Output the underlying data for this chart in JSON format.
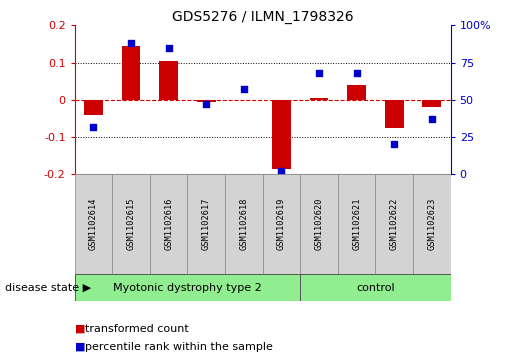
{
  "title": "GDS5276 / ILMN_1798326",
  "samples": [
    "GSM1102614",
    "GSM1102615",
    "GSM1102616",
    "GSM1102617",
    "GSM1102618",
    "GSM1102619",
    "GSM1102620",
    "GSM1102621",
    "GSM1102622",
    "GSM1102623"
  ],
  "transformed_count": [
    -0.04,
    0.145,
    0.105,
    -0.005,
    0.0,
    -0.185,
    0.005,
    0.04,
    -0.075,
    -0.02
  ],
  "percentile_rank": [
    32,
    88,
    85,
    47,
    57,
    2,
    68,
    68,
    20,
    37
  ],
  "groups": [
    {
      "label": "Myotonic dystrophy type 2",
      "start": 0,
      "end": 5,
      "color": "#90EE90"
    },
    {
      "label": "control",
      "start": 6,
      "end": 9,
      "color": "#90EE90"
    }
  ],
  "bar_color": "#CC0000",
  "dot_color": "#0000CC",
  "ylim_left": [
    -0.2,
    0.2
  ],
  "ylim_right": [
    0,
    100
  ],
  "yticks_left": [
    -0.2,
    -0.1,
    0.0,
    0.1,
    0.2
  ],
  "yticks_right": [
    0,
    25,
    50,
    75,
    100
  ],
  "ytick_labels_left": [
    "-0.2",
    "-0.1",
    "0",
    "0.1",
    "0.2"
  ],
  "ytick_labels_right": [
    "0",
    "25",
    "50",
    "75",
    "100%"
  ],
  "zero_line_color": "#CC0000",
  "grid_color": "#000000",
  "bar_width": 0.5,
  "disease_state_label": "disease state",
  "legend_items": [
    {
      "label": "transformed count",
      "color": "#CC0000"
    },
    {
      "label": "percentile rank within the sample",
      "color": "#0000CC"
    }
  ]
}
